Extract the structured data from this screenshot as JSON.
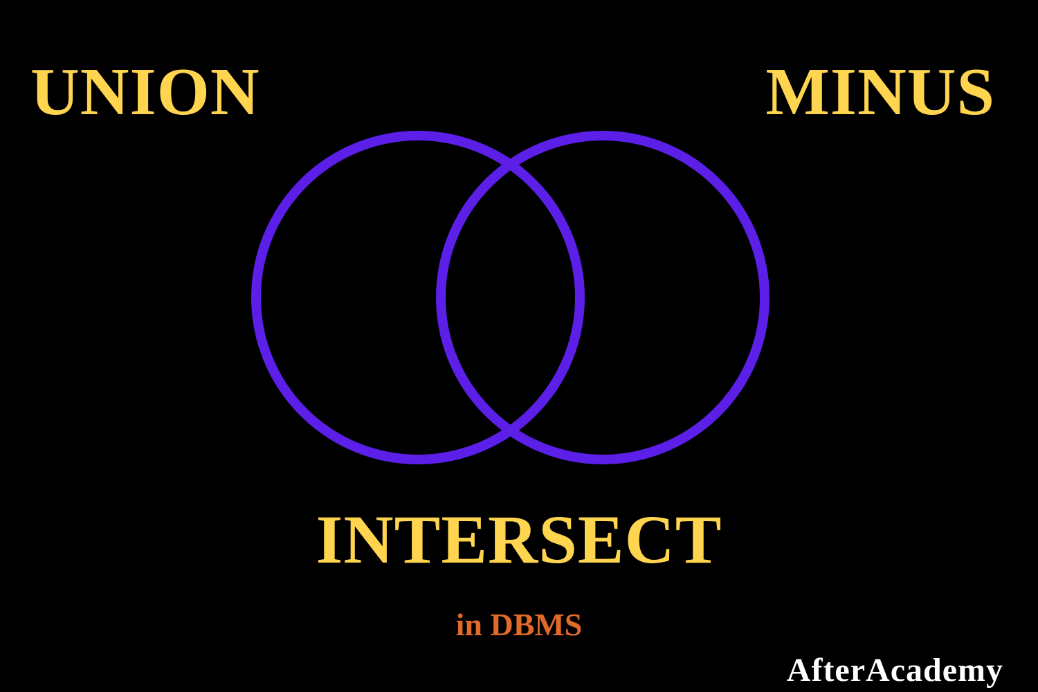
{
  "heading": {
    "union": "UNION",
    "minus": "MINUS",
    "intersect": "INTERSECT"
  },
  "subtitle": "in DBMS",
  "brand": "AfterAcademy",
  "colors": {
    "background": "#000000",
    "heading": "#FFD54F",
    "subtitle": "#E06A2A",
    "brand": "#FFFFFF",
    "circle_stroke": "#5B1FE8"
  }
}
